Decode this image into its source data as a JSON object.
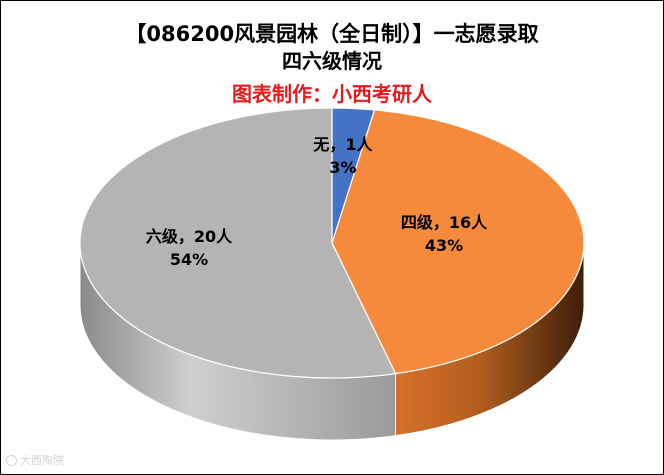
{
  "chart_data": {
    "type": "pie",
    "title": "【086200风景园林（全日制）】一志愿录取",
    "subtitle": "四六级情况",
    "credit": "图表制作：小西考研人",
    "slices": [
      {
        "name": "无",
        "count": 1,
        "unit": "人",
        "percent": "3%",
        "color": "#4472c4",
        "side": "#2e4f8a",
        "label": "无，1人"
      },
      {
        "name": "四级",
        "count": 16,
        "unit": "人",
        "percent": "43%",
        "color": "#f58a3c",
        "side": "#a9561a",
        "label": "四级，16人"
      },
      {
        "name": "六级",
        "count": 20,
        "unit": "人",
        "percent": "54%",
        "color": "#b4b4b4",
        "side": "#8f8f8f",
        "label": "六级，20人"
      }
    ]
  },
  "watermark": "大西陶院"
}
